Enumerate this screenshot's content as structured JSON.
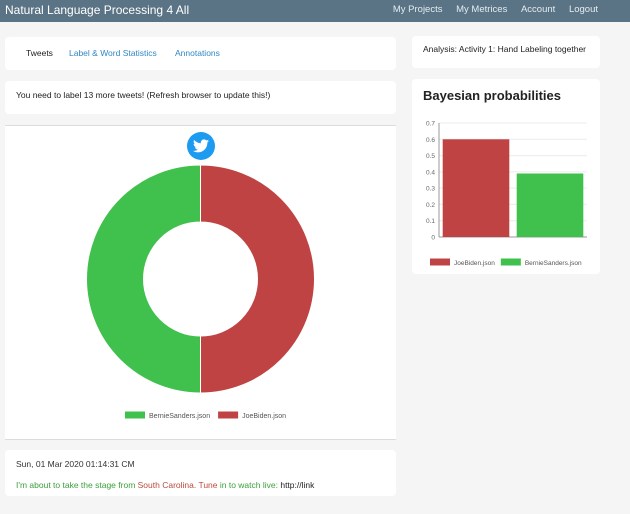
{
  "app": {
    "title": "Natural Language Processing 4 All",
    "nav": [
      "My Projects",
      "My Metrices",
      "Account",
      "Logout"
    ]
  },
  "tabs": [
    "Tweets",
    "Label & Word Statistics",
    "Annotations"
  ],
  "notice": "You need to label 13 more tweets! (Refresh browser to update this!)",
  "twitter_icon": "twitter-bird-icon",
  "tweet": {
    "date": "Sun, 01 Mar 2020 01:14:31 CM",
    "text_before": "I'm about to take the stage from ",
    "text_highlight": "South Carolina. Tune",
    "text_after": " in to watch live: ",
    "link": "http://link"
  },
  "analysis": "Analysis: Activity 1: Hand Labeling together",
  "bayes": {
    "title": "Bayesian probabilities"
  },
  "colors": {
    "red": "#bf4343",
    "green": "#40c04c",
    "navbar": "#5a7485",
    "link": "#2f88c4"
  },
  "chart_data": [
    {
      "type": "pie",
      "donut": true,
      "labels": [
        "BernieSanders.json",
        "JoeBiden.json"
      ],
      "values": [
        50,
        50
      ],
      "colors": [
        "#40c04c",
        "#bf4343"
      ],
      "legend": "bottom"
    },
    {
      "type": "bar",
      "title": "Bayesian probabilities",
      "categories": [
        "JoeBiden.json",
        "BernieSanders.json"
      ],
      "values": [
        0.6,
        0.39
      ],
      "colors": [
        "#bf4343",
        "#40c04c"
      ],
      "yticks": [
        "0",
        "0.1",
        "0.2",
        "0.3",
        "0.4",
        "0.5",
        "0.6",
        "0.7"
      ],
      "ylim": [
        0,
        0.7
      ],
      "grid": true,
      "legend": "bottom"
    }
  ]
}
